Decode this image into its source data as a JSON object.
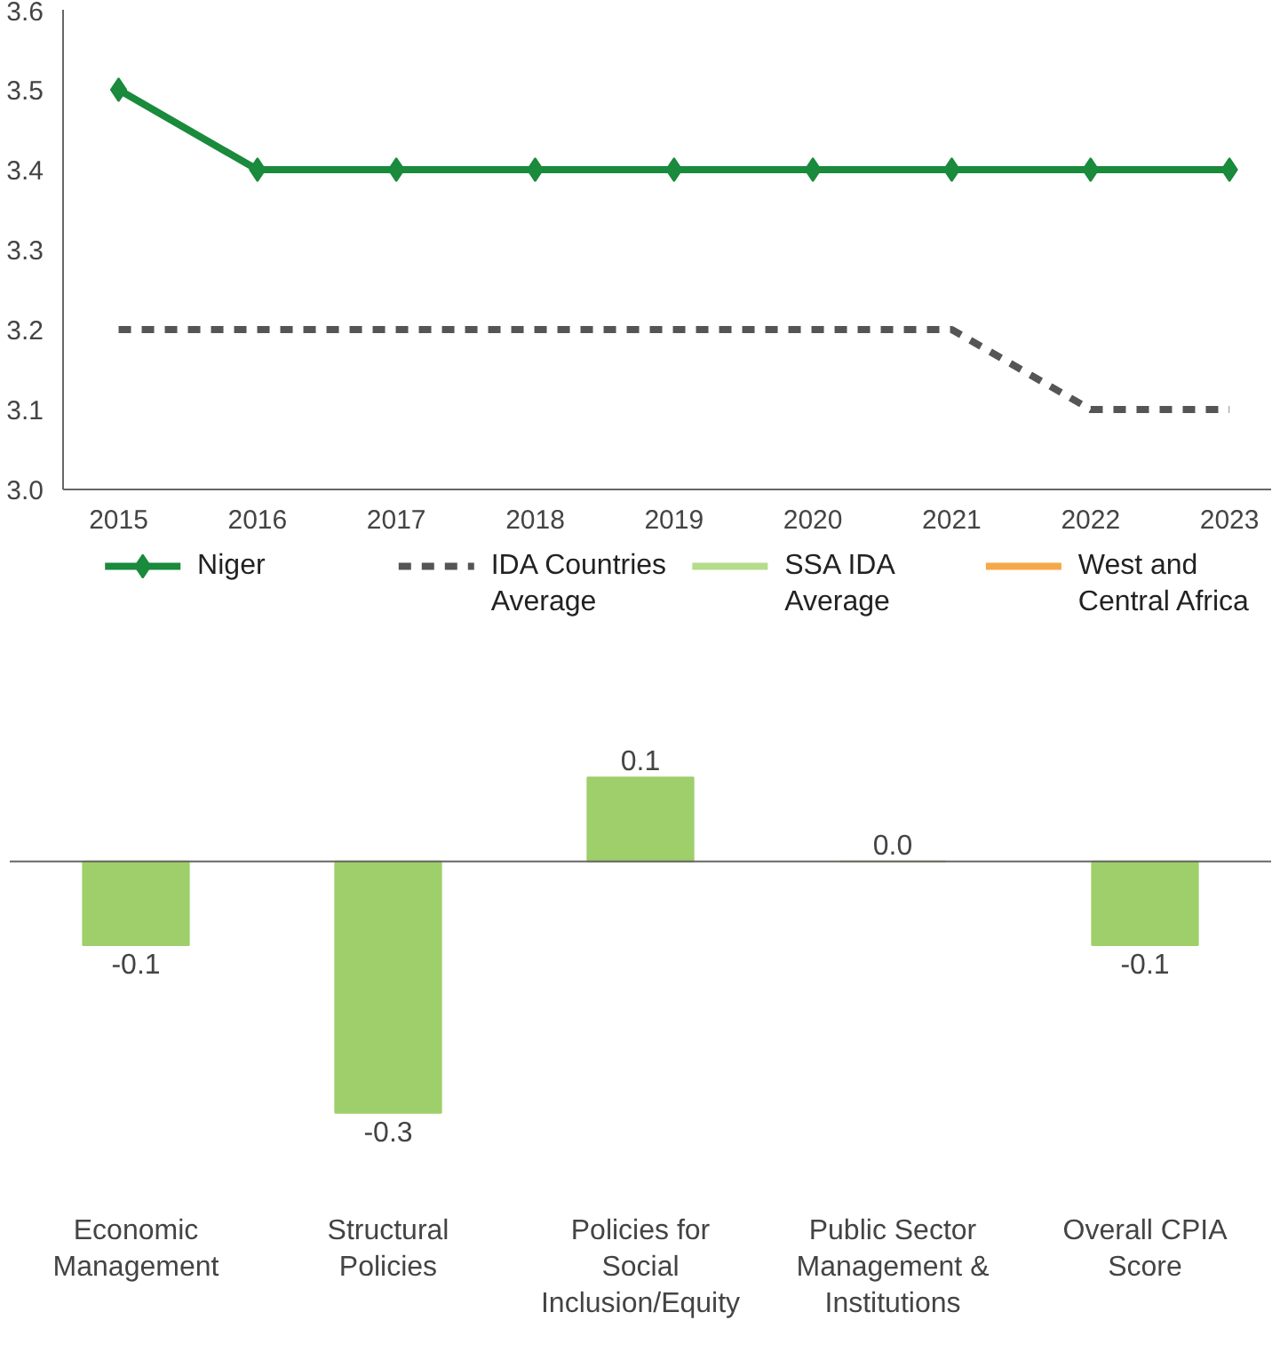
{
  "chart_data": [
    {
      "type": "line",
      "x": [
        2015,
        2016,
        2017,
        2018,
        2019,
        2020,
        2021,
        2022,
        2023
      ],
      "ylim": [
        3.0,
        3.6
      ],
      "yticks": [
        {
          "value": 3.0,
          "label": "3.0"
        },
        {
          "value": 3.1,
          "label": "3.1"
        },
        {
          "value": 3.2,
          "label": "3.2"
        },
        {
          "value": 3.3,
          "label": "3.3"
        },
        {
          "value": 3.4,
          "label": "3.4"
        },
        {
          "value": 3.5,
          "label": "3.5"
        },
        {
          "value": 3.6,
          "label": "3.6"
        }
      ],
      "xlim": [
        2014.6,
        2023.3
      ],
      "xticks": [
        2015,
        2016,
        2017,
        2018,
        2019,
        2020,
        2021,
        2022,
        2023
      ],
      "grid": false,
      "legend": "bottom",
      "series": [
        {
          "name": "Niger",
          "color": "#1a8a3c",
          "marker": "diamond",
          "line_style": "solid",
          "values": [
            3.5,
            3.4,
            3.4,
            3.4,
            3.4,
            3.4,
            3.4,
            3.4,
            3.4
          ]
        },
        {
          "name": "IDA Countries Average",
          "color": "#555555",
          "marker": "none",
          "line_style": "dashed",
          "values": [
            3.2,
            3.2,
            3.2,
            3.2,
            3.2,
            3.2,
            3.2,
            3.1,
            3.1
          ]
        },
        {
          "name": "SSA IDA Average",
          "color": "#b5dc8a",
          "marker": "none",
          "line_style": "solid",
          "values": [
            null,
            null,
            null,
            null,
            null,
            null,
            null,
            null,
            null
          ]
        },
        {
          "name": "West and Central Africa",
          "color": "#f5a84a",
          "marker": "none",
          "line_style": "solid",
          "values": [
            null,
            null,
            null,
            null,
            null,
            null,
            null,
            null,
            null
          ]
        }
      ]
    },
    {
      "type": "bar",
      "categories": [
        "Economic Management",
        "Structural Policies",
        "Policies for Social Inclusion/Equity",
        "Public Sector Management & Institutions",
        "Overall CPIA Score"
      ],
      "values": [
        -0.1,
        -0.3,
        0.1,
        0.0,
        -0.1
      ],
      "color": "#9ecf6a",
      "value_labels": [
        "-0.1",
        "-0.3",
        "0.1",
        "0.0",
        "-0.1"
      ]
    }
  ]
}
